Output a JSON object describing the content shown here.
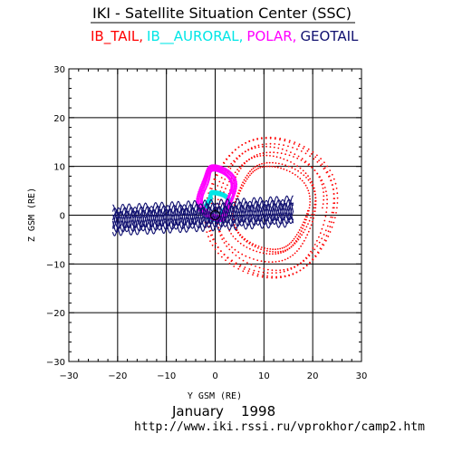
{
  "header": {
    "title": "IKI - Satellite Situation Center (SSC)"
  },
  "chart_data": {
    "type": "scatter",
    "title": "IKI - Satellite Situation Center (SSC)",
    "xlabel": "Y GSM (RE)",
    "ylabel": "Z GSM (RE)",
    "xlim": [
      -30,
      30
    ],
    "ylim": [
      -30,
      30
    ],
    "xticks": [
      -30,
      -20,
      -10,
      0,
      10,
      20,
      30
    ],
    "yticks": [
      -30,
      -20,
      -10,
      0,
      10,
      20,
      30
    ],
    "grid": true,
    "legend": "top",
    "series": [
      {
        "name": "IB_TAIL,",
        "color": "#ff0000",
        "shape": "ring",
        "cx": 11.5,
        "cy": 1.5,
        "rx": 10.5,
        "ry": 11.5,
        "thickness": 3.0,
        "turns": 8,
        "step_deg": 4
      },
      {
        "name": "IB__AURORAL,",
        "color": "#00e6e6",
        "shape": "ring",
        "cx": 0.2,
        "cy": 1.8,
        "rx": 2.2,
        "ry": 2.8,
        "thickness": 0.4,
        "turns": 6,
        "step_deg": 3
      },
      {
        "name": "POLAR,",
        "color": "#ff00ff",
        "shape": "ring",
        "cx": 0.3,
        "cy": 4.5,
        "rx": 3.2,
        "ry": 5.2,
        "thickness": 0.6,
        "turns": 8,
        "step_deg": 3
      },
      {
        "name": "GEOTAIL",
        "color": "#101070",
        "shape": "band",
        "x_from": -21.0,
        "x_to": 16.0,
        "center_y": 0.0,
        "tilt": 0.05,
        "amplitude": 3.2,
        "wiggles": 11,
        "strands": 8
      }
    ],
    "origin_marker": [
      0,
      0
    ]
  },
  "footer": {
    "date_label": "January    1998",
    "url": "http://www.iki.rssi.ru/vprokhor/camp2.htm"
  }
}
